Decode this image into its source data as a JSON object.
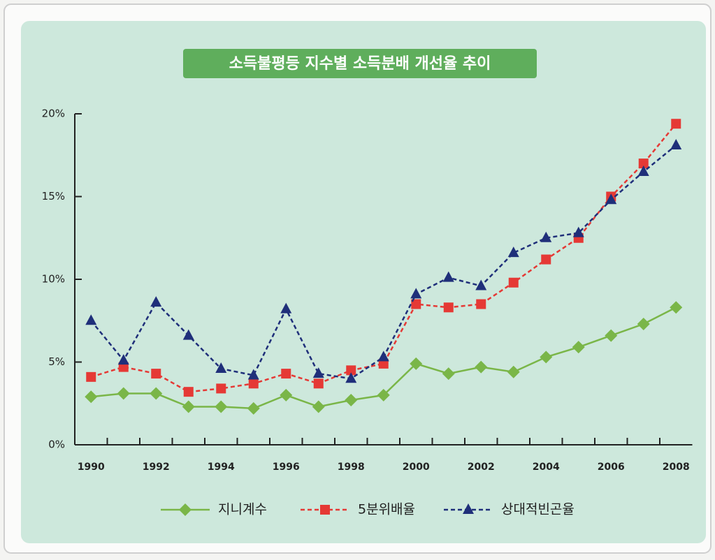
{
  "chart_data": {
    "type": "line",
    "title": "소득불평등 지수별 소득분배 개선율 추이",
    "categories": [
      "1990",
      null,
      "1992",
      null,
      "1994",
      null,
      "1996",
      null,
      "1998",
      null,
      "2000",
      null,
      "2002",
      null,
      "2004",
      null,
      "2006",
      null,
      "2008"
    ],
    "ylim": [
      0,
      20
    ],
    "yticks": [
      {
        "value": 0,
        "label": "0%"
      },
      {
        "value": 5,
        "label": "5%"
      },
      {
        "value": 10,
        "label": "10%"
      },
      {
        "value": 15,
        "label": "15%"
      },
      {
        "value": 20,
        "label": "20%"
      }
    ],
    "series": [
      {
        "name": "지니계수",
        "color": "#7ab648",
        "marker": "diamond",
        "dash": "solid",
        "values": [
          2.9,
          3.1,
          3.1,
          2.3,
          2.3,
          2.2,
          3.0,
          2.3,
          2.7,
          3.0,
          4.9,
          4.3,
          4.7,
          4.4,
          5.3,
          5.9,
          6.6,
          7.3,
          8.3
        ]
      },
      {
        "name": "5분위배율",
        "color": "#e53935",
        "marker": "square",
        "dash": "dashed",
        "values": [
          4.1,
          4.7,
          4.3,
          3.2,
          3.4,
          3.7,
          4.3,
          3.7,
          4.5,
          4.9,
          8.5,
          8.3,
          8.5,
          9.8,
          11.2,
          12.5,
          15.0,
          17.0,
          19.4
        ]
      },
      {
        "name": "상대적빈곤율",
        "color": "#1f2f7a",
        "marker": "triangle",
        "dash": "dashed",
        "values": [
          7.5,
          5.1,
          8.6,
          6.6,
          4.6,
          4.2,
          8.2,
          4.3,
          4.0,
          5.3,
          9.1,
          10.1,
          9.6,
          11.6,
          12.5,
          12.8,
          14.8,
          16.5,
          18.1
        ]
      }
    ]
  }
}
